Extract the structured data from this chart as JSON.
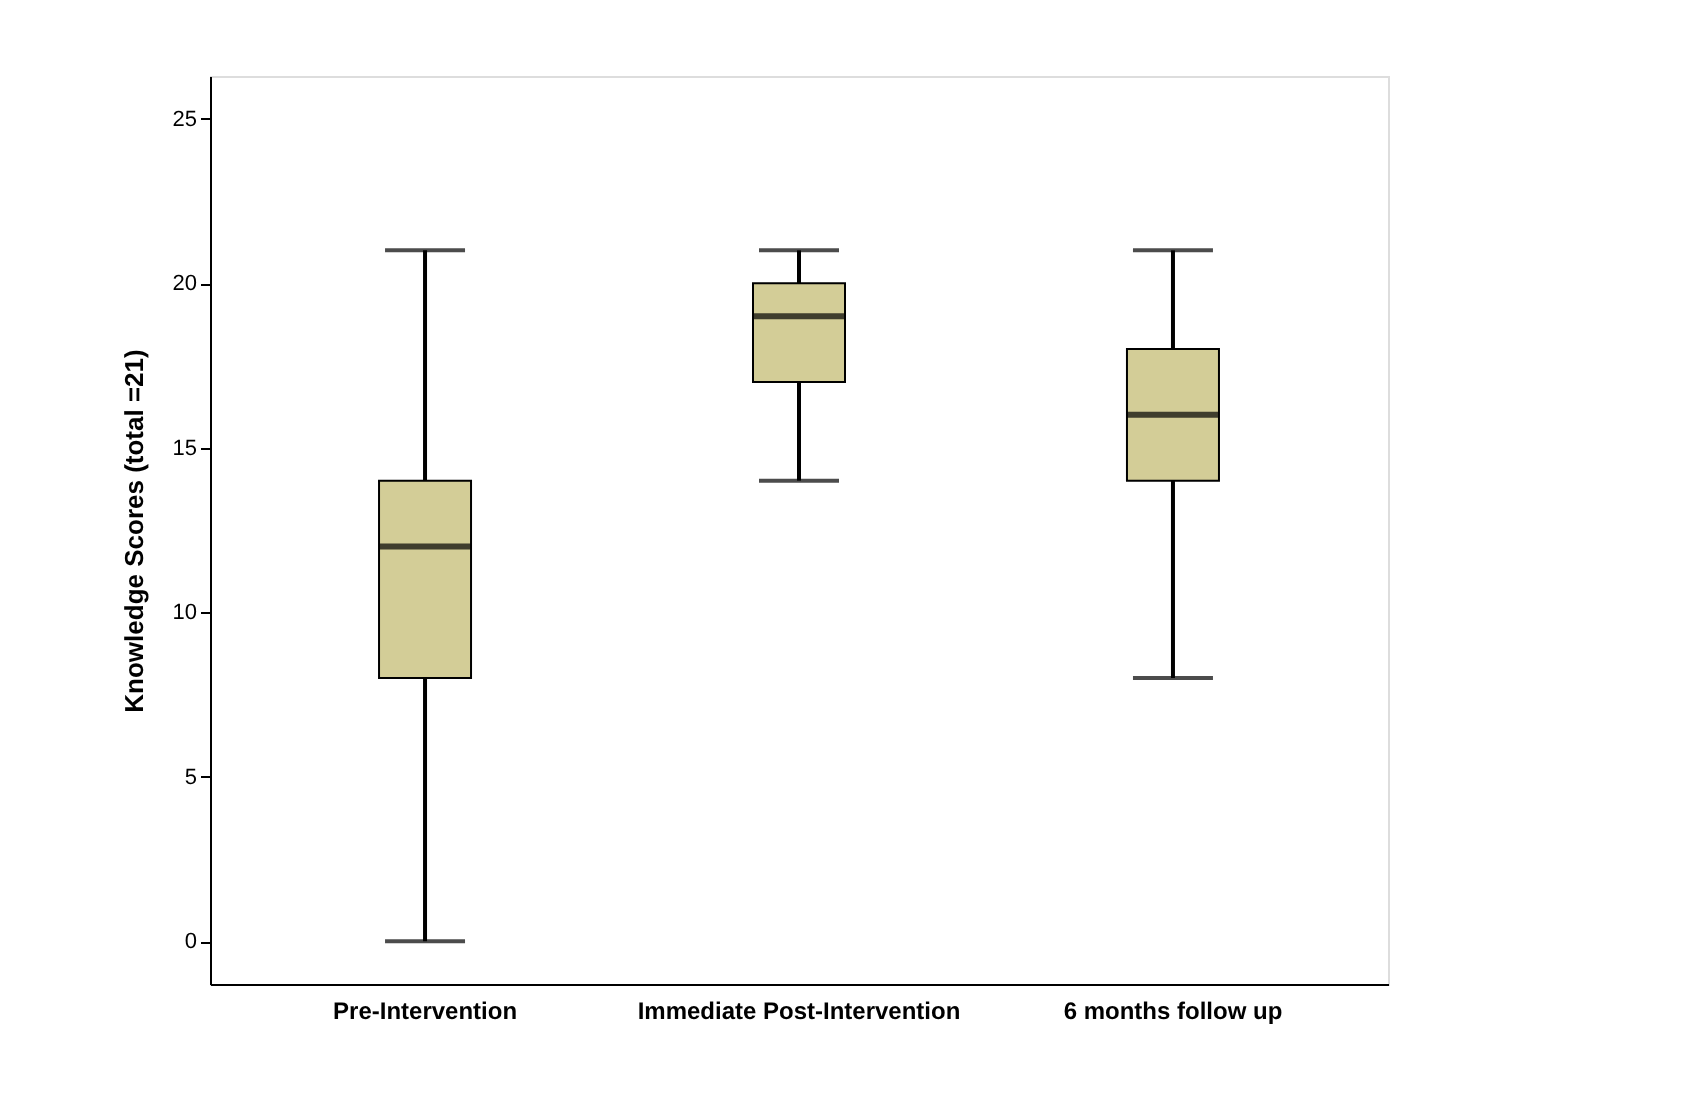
{
  "chart_data": {
    "type": "box",
    "ylabel": "Knowledge Scores (total =21)",
    "categories": [
      "Pre-Intervention",
      "Immediate Post-Intervention",
      "6 months follow up"
    ],
    "boxes": [
      {
        "low": 0,
        "q1": 8,
        "median": 12,
        "q3": 14,
        "high": 21
      },
      {
        "low": 14,
        "q1": 17,
        "median": 19,
        "q3": 20,
        "high": 21
      },
      {
        "low": 8,
        "q1": 14,
        "median": 16,
        "q3": 18,
        "high": 21
      }
    ],
    "color": "#d3cd97",
    "ylim": [
      -1.3,
      26.3
    ],
    "yticks": [
      0,
      5,
      10,
      15,
      20,
      25
    ],
    "grid": false
  }
}
